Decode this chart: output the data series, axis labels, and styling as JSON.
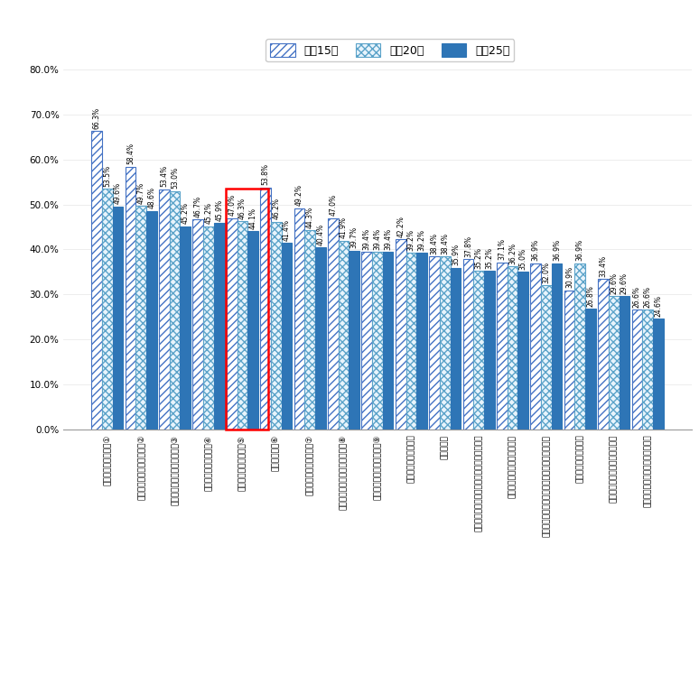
{
  "categories": [
    "高齢者などへの配慮①",
    "注　地震時の住宅の安全性②",
    "冷暖房などの省エネルギー性③",
    "住宅のいたみの少なさ④",
    "住宅の断熱性や気密性⑤",
    "住宅の防範性⑥",
    "収納の多さ、使いやすさ⑦",
    "外部からの騒音に対する遅音性⑧",
    "注　台風時の住宅の安全性⑨",
    "火災に対する安全性⑪",
    "換気性能⑫",
    "上下階や隣戸の生活音などに対する遅音性⑬",
    "住宅の維持管理のしやすさ⑭",
    "台所、トイレ、浴室などの使いやすさ、広さ⑮",
    "住宅の広さや間取り⑯",
    "居間など、主な居住室の採光⒰",
    "外部からのプライバシーの確保⒱"
  ],
  "values_h15": [
    66.3,
    58.4,
    53.4,
    46.7,
    47.0,
    53.8,
    49.2,
    47.0,
    39.4,
    42.2,
    38.4,
    37.8,
    37.1,
    36.9,
    30.9,
    33.4,
    26.6
  ],
  "values_h20": [
    53.5,
    49.7,
    53.0,
    45.2,
    46.3,
    46.2,
    44.3,
    41.9,
    39.4,
    39.2,
    38.4,
    35.2,
    36.2,
    32.0,
    36.9,
    29.6,
    26.6
  ],
  "values_h25": [
    49.6,
    48.6,
    45.2,
    45.9,
    44.1,
    41.4,
    40.4,
    39.7,
    39.4,
    39.2,
    35.9,
    35.2,
    35.0,
    36.9,
    26.8,
    29.6,
    24.6
  ],
  "ylim": [
    0,
    80
  ],
  "yticks": [
    0,
    10,
    20,
    30,
    40,
    50,
    60,
    70,
    80
  ],
  "ytick_labels": [
    "0.0%",
    "10.0%",
    "20.0%",
    "30.0%",
    "40.0%",
    "50.0%",
    "60.0%",
    "70.0%",
    "80.0%"
  ],
  "highlighted_bar_index": 4,
  "legend_h15": "平成15年",
  "legend_h20": "平成20年",
  "legend_h25": "平成25年"
}
